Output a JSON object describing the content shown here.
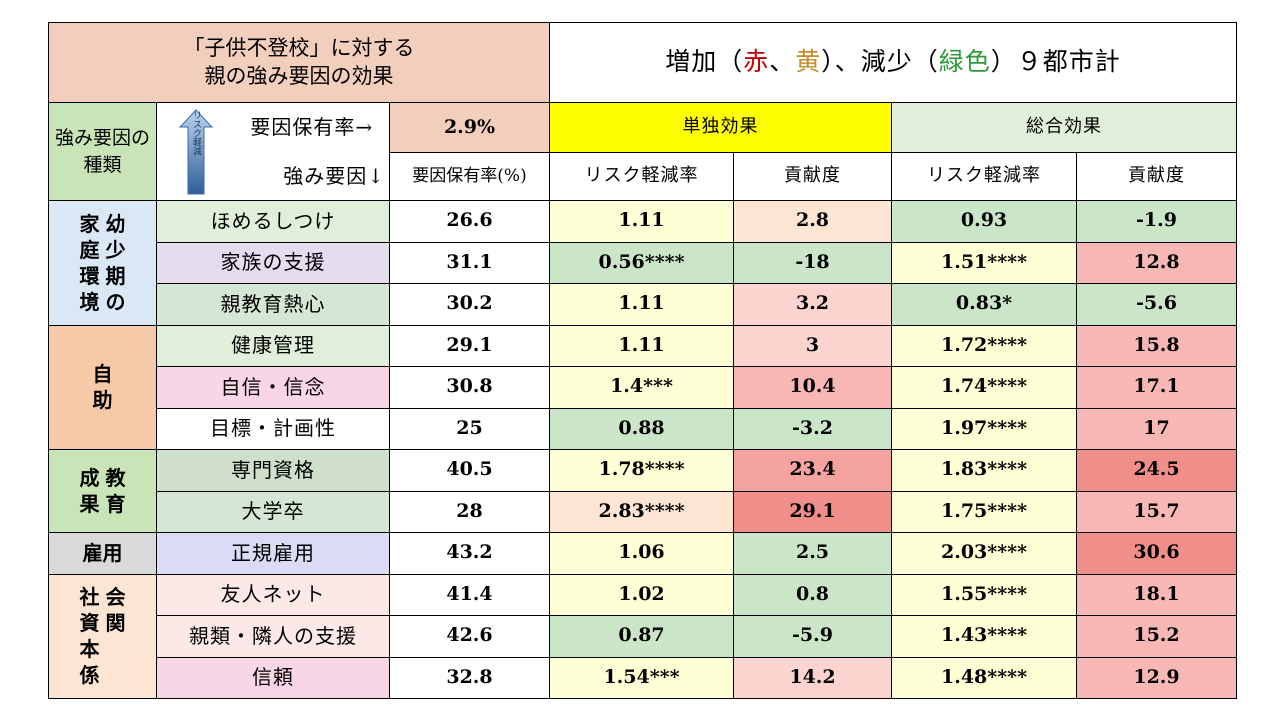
{
  "header": {
    "title_left_line1": "「子供不登校」に対する",
    "title_left_line2": "親の強み要因の効果",
    "title_right_parts": [
      "増加（",
      "赤",
      "、",
      "黄",
      "）、減少（",
      "緑色",
      "）９都市計"
    ]
  },
  "subheader": {
    "type_label": "強み要因の種類",
    "arrow_label": "リスク軽減",
    "holding_rate_label": "要因保有率→",
    "holding_rate_value": "2.9%",
    "strength_factor_label": "強み要因↓",
    "holding_rate_pct_label": "要因保有率(%)",
    "single_effect": "単独効果",
    "total_effect": "総合効果",
    "risk_reduction": "リスク軽減率",
    "contribution": "貢献度"
  },
  "colors": {
    "green": "#cbe5c8",
    "pale_yellow": "#ffffd6",
    "peach": "#fde5d4",
    "pink1": "#fbd4d0",
    "pink2": "#f7b8b5",
    "red1": "#f4a3a0",
    "red2": "#f08f8a",
    "yellow_head": "#ffff00",
    "green_head": "#e1efda"
  },
  "chart_data": {
    "type": "table",
    "groups": [
      {
        "name": "幼少期の家庭環境",
        "cols": [
          [
            "家",
            "庭",
            "環",
            "境"
          ],
          [
            "幼",
            "少",
            "期",
            "の"
          ]
        ],
        "bg": "#dae8f5",
        "rows": [
          {
            "factor": "ほめるしつけ",
            "factor_bg": "#e1efda",
            "rate": "26.6",
            "single_rr": "1.11",
            "single_c": "2.8",
            "total_rr": "0.93",
            "total_c": "-1.9"
          },
          {
            "factor": "家族の支援",
            "factor_bg": "#e6dcef",
            "rate": "31.1",
            "single_rr": "0.56****",
            "single_c": "-18",
            "total_rr": "1.51****",
            "total_c": "12.8"
          },
          {
            "factor": "親教育熱心",
            "factor_bg": "#d6e6d5",
            "rate": "30.2",
            "single_rr": "1.11",
            "single_c": "3.2",
            "total_rr": "0.83*",
            "total_c": "-5.6"
          }
        ]
      },
      {
        "name": "自助",
        "cols": [
          [
            "自",
            "助"
          ]
        ],
        "bg": "#f6c9a8",
        "rows": [
          {
            "factor": "健康管理",
            "factor_bg": "#e1efda",
            "rate": "29.1",
            "single_rr": "1.11",
            "single_c": "3",
            "total_rr": "1.72****",
            "total_c": "15.8"
          },
          {
            "factor": "自信・信念",
            "factor_bg": "#f9d6e6",
            "rate": "30.8",
            "single_rr": "1.4***",
            "single_c": "10.4",
            "total_rr": "1.74****",
            "total_c": "17.1"
          },
          {
            "factor": "目標・計画性",
            "factor_bg": "#ffffff",
            "rate": "25",
            "single_rr": "0.88",
            "single_c": "-3.2",
            "total_rr": "1.97****",
            "total_c": "17"
          }
        ]
      },
      {
        "name": "教育成果",
        "cols": [
          [
            "成",
            "果"
          ],
          [
            "教",
            "育"
          ]
        ],
        "bg": "#c9e5b8",
        "rows": [
          {
            "factor": "専門資格",
            "factor_bg": "#cfdfcc",
            "rate": "40.5",
            "single_rr": "1.78****",
            "single_c": "23.4",
            "total_rr": "1.83****",
            "total_c": "24.5"
          },
          {
            "factor": "大学卒",
            "factor_bg": "#d6e6d5",
            "rate": "28",
            "single_rr": "2.83****",
            "single_c": "29.1",
            "total_rr": "1.75****",
            "total_c": "15.7"
          }
        ]
      },
      {
        "name": "雇用",
        "cols": [
          [
            "雇用"
          ]
        ],
        "bg": "#d9d9d9",
        "rows": [
          {
            "factor": "正規雇用",
            "factor_bg": "#d9dcf4",
            "rate": "43.2",
            "single_rr": "1.06",
            "single_c": "2.5",
            "total_rr": "2.03****",
            "total_c": "30.6"
          }
        ]
      },
      {
        "name": "社会関係資本",
        "cols": [
          [
            "社",
            "資",
            "本",
            "係"
          ],
          [
            "会",
            "関"
          ]
        ],
        "bg": "#fde5d4",
        "rows": [
          {
            "factor": "友人ネット",
            "factor_bg": "#fce8e6",
            "rate": "41.4",
            "single_rr": "1.02",
            "single_c": "0.8",
            "total_rr": "1.55****",
            "total_c": "18.1"
          },
          {
            "factor": "親類・隣人の支援",
            "factor_bg": "#fce8e6",
            "rate": "42.6",
            "single_rr": "0.87",
            "single_c": "-5.9",
            "total_rr": "1.43****",
            "total_c": "15.2"
          },
          {
            "factor": "信頼",
            "factor_bg": "#f9d6e6",
            "rate": "32.8",
            "single_rr": "1.54***",
            "single_c": "14.2",
            "total_rr": "1.48****",
            "total_c": "12.9"
          }
        ]
      }
    ]
  },
  "cell_colors": [
    [
      "#ffffd6",
      "#fde5d4",
      "#cbe5c8",
      "#cbe5c8"
    ],
    [
      "#cbe5c8",
      "#cbe5c8",
      "#ffffd6",
      "#f7b8b5"
    ],
    [
      "#ffffd6",
      "#fbd4d0",
      "#cbe5c8",
      "#cbe5c8"
    ],
    [
      "#ffffd6",
      "#fbd4d0",
      "#ffffd6",
      "#f7b8b5"
    ],
    [
      "#ffffd6",
      "#f7b8b5",
      "#ffffd6",
      "#f7b8b5"
    ],
    [
      "#cbe5c8",
      "#cbe5c8",
      "#ffffd6",
      "#f7b8b5"
    ],
    [
      "#ffffd6",
      "#f4a3a0",
      "#ffffd6",
      "#f08f8a"
    ],
    [
      "#fde5d4",
      "#f08f8a",
      "#ffffd6",
      "#f7b8b5"
    ],
    [
      "#ffffd6",
      "#cbe5c8",
      "#ffffd6",
      "#f08f8a"
    ],
    [
      "#ffffd6",
      "#cbe5c8",
      "#ffffd6",
      "#f7b8b5"
    ],
    [
      "#cbe5c8",
      "#cbe5c8",
      "#ffffd6",
      "#f7b8b5"
    ],
    [
      "#ffffd6",
      "#fbd4d0",
      "#ffffd6",
      "#f7b8b5"
    ]
  ]
}
